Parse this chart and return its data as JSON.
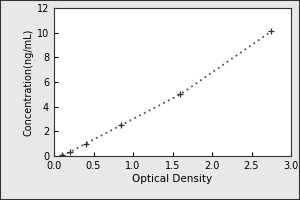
{
  "x_data": [
    0.1,
    0.2,
    0.4,
    0.85,
    1.6,
    2.75
  ],
  "y_data": [
    0.1,
    0.3,
    1.0,
    2.5,
    5.0,
    10.1
  ],
  "xlabel": "Optical Density",
  "ylabel": "Concentration(ng/mL)",
  "xlim": [
    0,
    3
  ],
  "ylim": [
    0,
    12
  ],
  "x_ticks": [
    0,
    0.5,
    1,
    1.5,
    2,
    2.5,
    3
  ],
  "y_ticks": [
    0,
    2,
    4,
    6,
    8,
    10,
    12
  ],
  "line_color": "#555555",
  "marker_color": "#333333",
  "outer_bg": "#e8e8e8",
  "plot_bg": "#ffffff",
  "xlabel_fontsize": 7.5,
  "ylabel_fontsize": 7,
  "tick_fontsize": 7,
  "title_fontsize": 8
}
